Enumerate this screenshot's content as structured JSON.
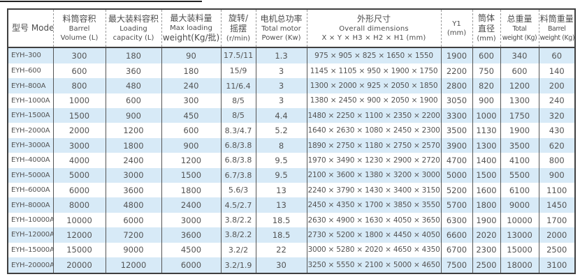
{
  "colors": {
    "row_alternate": "#d7eaf7",
    "border_dark": "#3f3f3f",
    "text_gray": "#545454"
  },
  "table": {
    "columns": [
      {
        "key": "model",
        "lines": [
          "型号 Model"
        ]
      },
      {
        "key": "volume",
        "lines": [
          "料筒容积",
          "Barrel",
          "Volume (L)"
        ]
      },
      {
        "key": "capacity",
        "lines": [
          "最大装料容积",
          "Loading",
          "capacity (L)"
        ]
      },
      {
        "key": "max-loading",
        "lines": [
          "最大装料量",
          "Max loading",
          "weight(Kg/批)"
        ]
      },
      {
        "key": "rotation",
        "lines": [
          "旋转/",
          "摇摆",
          "(r/min)"
        ]
      },
      {
        "key": "motor-power",
        "lines": [
          "电机总功率",
          "Total motor",
          "Power (Kw)"
        ]
      },
      {
        "key": "dimensions",
        "lines": [
          "外形尺寸",
          "Overall dimensions",
          "X × Y × H3 × H2 × H1 (mm)"
        ]
      },
      {
        "key": "y1",
        "lines": [
          "Y1",
          "(mm)"
        ]
      },
      {
        "key": "diameter",
        "lines": [
          "筒体",
          "直径",
          "(mm)"
        ]
      },
      {
        "key": "total-weight",
        "lines": [
          "总重量",
          "Total",
          "weight (Kg)"
        ]
      },
      {
        "key": "barrel-weight",
        "lines": [
          "料筒重量",
          "Barrel",
          "weight (Kg)"
        ]
      }
    ],
    "rows": [
      [
        "EYH–300",
        "300",
        "180",
        "90",
        "17.5/11",
        "1.3",
        "975 × 905 × 825 × 1650 × 1550",
        "1900",
        "600",
        "340",
        "60"
      ],
      [
        "EYH–600",
        "600",
        "360",
        "180",
        "15/9",
        "3",
        "1145 × 1105 × 950 × 1900 × 1750",
        "2200",
        "750",
        "600",
        "140"
      ],
      [
        "EYH–800A",
        "800",
        "480",
        "240",
        "11/6.4",
        "3",
        "1300 × 2000 × 925 × 2050 × 1850",
        "2800",
        "820",
        "1200",
        "200"
      ],
      [
        "EYH–1000A",
        "1000",
        "600",
        "300",
        "8/5",
        "3",
        "1380 × 2450 × 900 × 2050 × 1900",
        "3050",
        "900",
        "1300",
        "240"
      ],
      [
        "EYH–1500A",
        "1500",
        "900",
        "450",
        "8/5",
        "4.4",
        "1480 × 2250 × 1100 × 2350 × 2200",
        "3300",
        "1000",
        "1750",
        "320"
      ],
      [
        "EYH–2000A",
        "2000",
        "1200",
        "600",
        "8.3/4.7",
        "5.2",
        "1640 × 2630 × 1080 × 2450 × 2300",
        "3500",
        "1130",
        "1900",
        "430"
      ],
      [
        "EYH–3000A",
        "3000",
        "1800",
        "900",
        "6.8/3.8",
        "8",
        "1890 × 2750 × 1180 × 2750 × 2570",
        "3900",
        "1300",
        "3500",
        "620"
      ],
      [
        "EYH–4000A",
        "4000",
        "2400",
        "1200",
        "6.8/3.8",
        "9.5",
        "1970 × 3490 × 1230 × 2900 × 2720",
        "4700",
        "1400",
        "4100",
        "800"
      ],
      [
        "EYH–5000A",
        "5000",
        "3000",
        "1500",
        "6.7/3.8",
        "9.5",
        "2100 × 3600 × 1380 × 3200 × 3000",
        "5000",
        "1500",
        "5500",
        "900"
      ],
      [
        "EYH–6000A",
        "6000",
        "3600",
        "1800",
        "5.6/3",
        "13",
        "2240 × 3790 × 1430 × 3400 × 3150",
        "5200",
        "1600",
        "6100",
        "1100"
      ],
      [
        "EYH–8000A",
        "8000",
        "4800",
        "2400",
        "4.5/2.7",
        "13",
        "2450 × 4350 × 1700 × 3850 × 3550",
        "5700",
        "1800",
        "9000",
        "1450"
      ],
      [
        "EYH–10000A",
        "10000",
        "6000",
        "3000",
        "3.8/2.2",
        "18.5",
        "2630 × 4900 × 1630 × 4050 × 3650",
        "6300",
        "1900",
        "10000",
        "1700"
      ],
      [
        "EYH–12000A",
        "12000",
        "7200",
        "3600",
        "3.8/2.2",
        "18.5",
        "2730 × 5200 × 1800 × 4450 × 4050",
        "6600",
        "2020",
        "13000",
        "2000"
      ],
      [
        "EYH–15000A",
        "15000",
        "9000",
        "4500",
        "3.2/2",
        "22",
        "3000 × 5280 × 2020 × 4650 × 4350",
        "6700",
        "2300",
        "15000",
        "2500"
      ],
      [
        "EYH–20000A",
        "20000",
        "12000",
        "6000",
        "3.2/1.9",
        "30",
        "3250 × 5550 × 2100 × 5000 × 4650",
        "7500",
        "2500",
        "18000",
        "3100"
      ]
    ]
  }
}
